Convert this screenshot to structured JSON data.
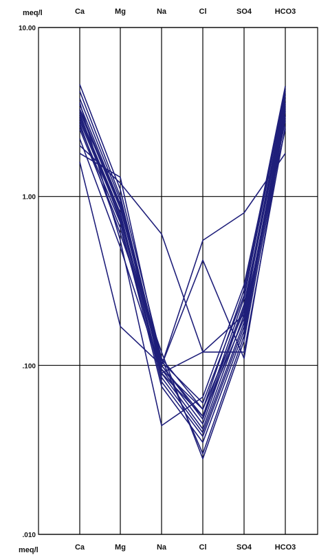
{
  "chart_data": {
    "type": "line",
    "unit_label": "meq/l",
    "categories": [
      "Ca",
      "Mg",
      "Na",
      "Cl",
      "SO4",
      "HCO3"
    ],
    "y_scale": "log",
    "ylim": [
      0.01,
      10
    ],
    "y_ticks": [
      {
        "value": 10,
        "label": "10.00"
      },
      {
        "value": 1,
        "label": "1.00"
      },
      {
        "value": 0.1,
        "label": ".100"
      },
      {
        "value": 0.01,
        "label": ".010"
      }
    ],
    "grid": true,
    "line_color": "#1f1f7a",
    "series": [
      {
        "values": [
          4.6,
          1.1,
          0.11,
          0.055,
          0.28,
          4.5
        ]
      },
      {
        "values": [
          4.2,
          1.0,
          0.1,
          0.05,
          0.25,
          4.2
        ]
      },
      {
        "values": [
          3.8,
          0.95,
          0.095,
          0.045,
          0.22,
          4.0
        ]
      },
      {
        "values": [
          3.5,
          0.9,
          0.09,
          0.042,
          0.2,
          3.8
        ]
      },
      {
        "values": [
          3.2,
          0.85,
          0.1,
          0.048,
          0.23,
          3.6
        ]
      },
      {
        "values": [
          3.0,
          0.8,
          0.085,
          0.04,
          0.18,
          3.4
        ]
      },
      {
        "values": [
          2.8,
          0.75,
          0.08,
          0.038,
          0.17,
          3.2
        ]
      },
      {
        "values": [
          2.6,
          0.7,
          0.075,
          0.035,
          0.16,
          3.0
        ]
      },
      {
        "values": [
          2.5,
          0.65,
          0.09,
          0.05,
          0.19,
          2.8
        ]
      },
      {
        "values": [
          3.3,
          0.88,
          0.105,
          0.06,
          0.26,
          4.3
        ]
      },
      {
        "values": [
          2.9,
          0.78,
          0.095,
          0.055,
          0.21,
          3.5
        ]
      },
      {
        "values": [
          2.0,
          1.2,
          0.6,
          0.12,
          0.2,
          2.5
        ]
      },
      {
        "values": [
          1.8,
          1.3,
          0.1,
          0.55,
          0.8,
          1.8
        ]
      },
      {
        "values": [
          1.6,
          0.17,
          0.1,
          0.42,
          0.11,
          3.0
        ]
      },
      {
        "values": [
          3.6,
          0.55,
          0.044,
          0.065,
          0.3,
          4.0
        ]
      },
      {
        "values": [
          2.7,
          0.6,
          0.12,
          0.028,
          0.14,
          2.9
        ]
      },
      {
        "values": [
          3.1,
          0.72,
          0.11,
          0.03,
          0.15,
          3.3
        ]
      },
      {
        "values": [
          2.2,
          0.5,
          0.09,
          0.12,
          0.12,
          2.6
        ]
      }
    ]
  }
}
